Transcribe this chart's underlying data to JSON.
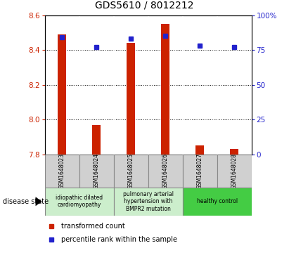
{
  "title": "GDS5610 / 8012212",
  "samples": [
    "GSM1648023",
    "GSM1648024",
    "GSM1648025",
    "GSM1648026",
    "GSM1648027",
    "GSM1648028"
  ],
  "transformed_count": [
    8.49,
    7.97,
    8.44,
    8.55,
    7.85,
    7.83
  ],
  "percentile_rank": [
    84,
    77,
    83,
    85,
    78,
    77
  ],
  "ylim_left": [
    7.8,
    8.6
  ],
  "ylim_right": [
    0,
    100
  ],
  "yticks_left": [
    7.8,
    8.0,
    8.2,
    8.4,
    8.6
  ],
  "yticks_right": [
    0,
    25,
    50,
    75,
    100
  ],
  "bar_color": "#cc2200",
  "dot_color": "#2222cc",
  "sample_bg_color": "#d0d0d0",
  "sample_border_color": "#888888",
  "disease_groups": [
    {
      "label": "idiopathic dilated\ncardiomyopathy",
      "start": 0,
      "end": 1,
      "bg": "#cceecc"
    },
    {
      "label": "pulmonary arterial\nhypertension with\nBMPR2 mutation",
      "start": 2,
      "end": 3,
      "bg": "#cceecc"
    },
    {
      "label": "healthy control",
      "start": 4,
      "end": 5,
      "bg": "#44cc44"
    }
  ],
  "legend_red_label": "transformed count",
  "legend_blue_label": "percentile rank within the sample",
  "disease_state_label": "disease state"
}
